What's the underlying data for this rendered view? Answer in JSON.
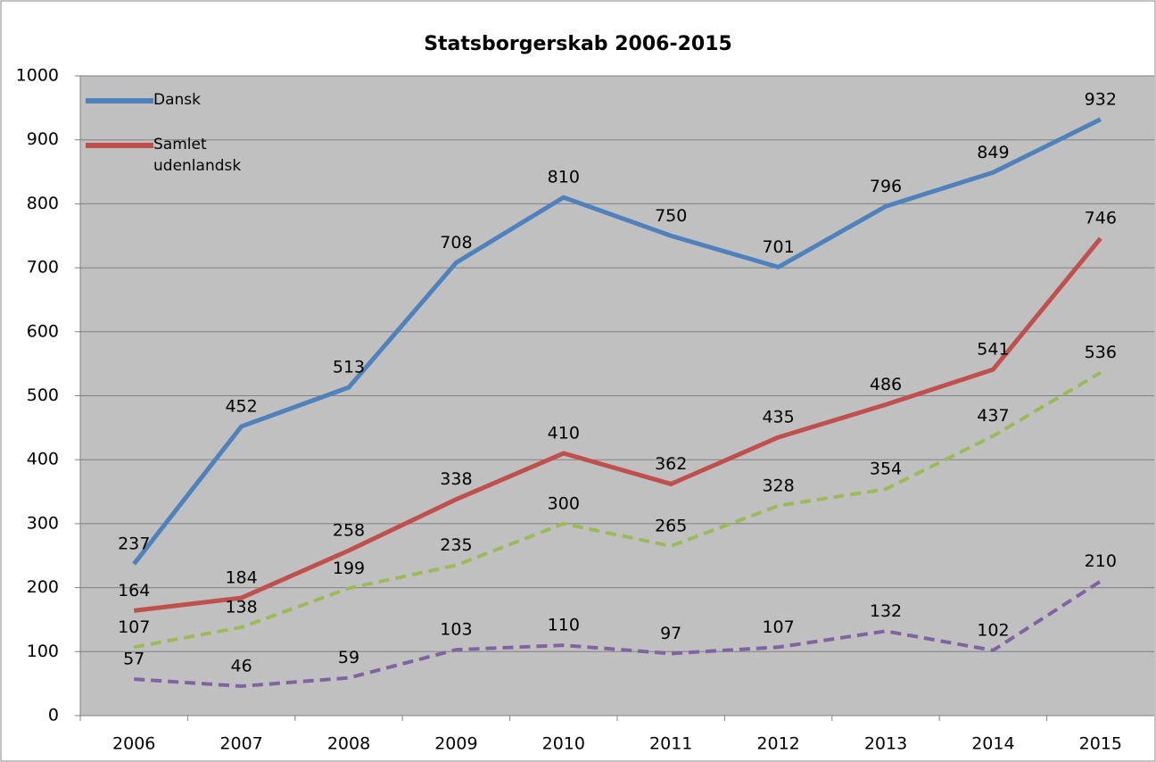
{
  "chart_data": {
    "type": "line",
    "title": "Statsborgerskab 2006-2015",
    "categories": [
      "2006",
      "2007",
      "2008",
      "2009",
      "2010",
      "2011",
      "2012",
      "2013",
      "2014",
      "2015"
    ],
    "series": [
      {
        "name": "Dansk",
        "color": "#4f81bd",
        "dashed": false,
        "values": [
          237,
          452,
          513,
          708,
          810,
          750,
          701,
          796,
          849,
          932
        ]
      },
      {
        "name": "Samlet udenlandsk",
        "color": "#c0504d",
        "dashed": false,
        "values": [
          164,
          184,
          258,
          338,
          410,
          362,
          435,
          486,
          541,
          746
        ]
      },
      {
        "color": "#9bbb59",
        "dashed": true,
        "values": [
          107,
          138,
          199,
          235,
          300,
          265,
          328,
          354,
          437,
          536
        ]
      },
      {
        "color": "#8064a2",
        "dashed": true,
        "values": [
          57,
          46,
          59,
          103,
          110,
          97,
          107,
          132,
          102,
          210
        ]
      }
    ],
    "ylim": [
      0,
      1000
    ],
    "yticks": [
      0,
      100,
      200,
      300,
      400,
      500,
      600,
      700,
      800,
      900,
      1000
    ],
    "grid": true,
    "legend": "upper left",
    "data_labels": true
  }
}
